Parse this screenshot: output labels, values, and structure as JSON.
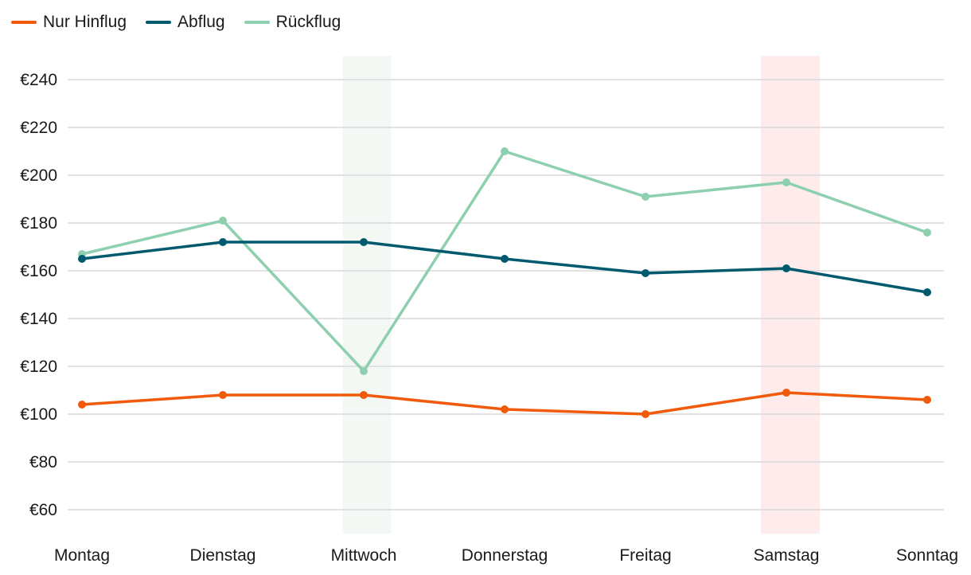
{
  "chart_data": {
    "type": "line",
    "categories": [
      "Montag",
      "Dienstag",
      "Mittwoch",
      "Donnerstag",
      "Freitag",
      "Samstag",
      "Sonntag"
    ],
    "series": [
      {
        "name": "Nur Hinflug",
        "color": "#f05a0a",
        "values": [
          104,
          108,
          108,
          102,
          100,
          109,
          106
        ]
      },
      {
        "name": "Abflug",
        "color": "#005a6e",
        "values": [
          165,
          172,
          172,
          165,
          159,
          161,
          151
        ]
      },
      {
        "name": "Rückflug",
        "color": "#8ecfb0",
        "values": [
          167,
          181,
          118,
          210,
          191,
          197,
          176
        ]
      }
    ],
    "yticks": [
      60,
      80,
      100,
      120,
      140,
      160,
      180,
      200,
      220,
      240
    ],
    "ytick_labels": [
      "€60",
      "€80",
      "€100",
      "€120",
      "€140",
      "€160",
      "€180",
      "€200",
      "€220",
      "€240"
    ],
    "ylim": [
      50,
      250
    ],
    "grid": true,
    "legend_position": "top-left",
    "highlights": [
      {
        "category": "Mittwoch",
        "color": "#f3f8f5"
      },
      {
        "category": "Samstag",
        "color": "#fdeceb"
      }
    ]
  }
}
